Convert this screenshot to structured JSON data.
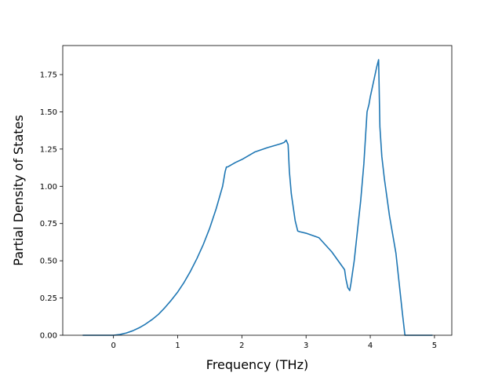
{
  "chart_data": {
    "type": "line",
    "xlabel": "Frequency (THz)",
    "ylabel": "Partial Density of States",
    "xlim": [
      -0.79,
      5.27
    ],
    "ylim": [
      0,
      1.945
    ],
    "xticks": [
      0,
      1,
      2,
      3,
      4,
      5
    ],
    "xtick_labels": [
      "0",
      "1",
      "2",
      "3",
      "4",
      "5"
    ],
    "yticks": [
      0,
      0.25,
      0.5,
      0.75,
      1.0,
      1.25,
      1.5,
      1.75
    ],
    "ytick_labels": [
      "0.00",
      "0.25",
      "0.50",
      "0.75",
      "1.00",
      "1.25",
      "1.50",
      "1.75"
    ],
    "grid": false,
    "series": [
      {
        "color": "#1f77b4",
        "x": [
          -0.48,
          -0.2,
          0.0,
          0.1,
          0.2,
          0.3,
          0.4,
          0.5,
          0.6,
          0.7,
          0.8,
          0.9,
          1.0,
          1.1,
          1.2,
          1.3,
          1.4,
          1.5,
          1.6,
          1.7,
          1.74,
          1.76,
          1.78,
          1.9,
          2.0,
          2.2,
          2.4,
          2.6,
          2.66,
          2.69,
          2.72,
          2.74,
          2.77,
          2.83,
          2.87,
          2.9,
          3.0,
          3.2,
          3.4,
          3.5,
          3.6,
          3.62,
          3.65,
          3.68,
          3.7,
          3.75,
          3.8,
          3.85,
          3.9,
          3.95,
          3.98,
          4.0,
          4.05,
          4.1,
          4.13,
          4.15,
          4.18,
          4.22,
          4.3,
          4.4,
          4.45,
          4.5,
          4.54,
          4.6,
          4.8,
          4.97
        ],
        "y": [
          0.0,
          0.0,
          0.0,
          0.005,
          0.015,
          0.03,
          0.05,
          0.075,
          0.105,
          0.14,
          0.185,
          0.235,
          0.29,
          0.355,
          0.43,
          0.515,
          0.61,
          0.72,
          0.85,
          1.0,
          1.1,
          1.13,
          1.13,
          1.16,
          1.18,
          1.23,
          1.26,
          1.285,
          1.295,
          1.31,
          1.28,
          1.1,
          0.95,
          0.77,
          0.7,
          0.695,
          0.685,
          0.655,
          0.56,
          0.5,
          0.44,
          0.38,
          0.32,
          0.3,
          0.35,
          0.5,
          0.7,
          0.9,
          1.15,
          1.5,
          1.55,
          1.6,
          1.7,
          1.8,
          1.85,
          1.4,
          1.2,
          1.05,
          0.8,
          0.55,
          0.35,
          0.15,
          0.0,
          0.0,
          0.0,
          0.0
        ]
      }
    ]
  }
}
